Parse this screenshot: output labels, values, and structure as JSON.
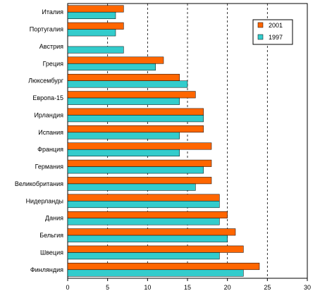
{
  "chart_data": {
    "type": "bar",
    "orientation": "horizontal",
    "categories": [
      "Италия",
      "Португалия",
      "Австрия",
      "Греция",
      "Люксембург",
      "Европа-15",
      "Ирландия",
      "Испания",
      "Франция",
      "Германия",
      "Великобритания",
      "Нидерланды",
      "Дания",
      "Бельгия",
      "Швеция",
      "Финляндия"
    ],
    "series": [
      {
        "name": "2001",
        "color": "#ff6600",
        "values": [
          7,
          7,
          null,
          12,
          14,
          16,
          17,
          17,
          18,
          18,
          18,
          19,
          20,
          21,
          22,
          24
        ]
      },
      {
        "name": "1997",
        "color": "#33cccc",
        "values": [
          6,
          6,
          7,
          11,
          15,
          14,
          17,
          14,
          14,
          17,
          16,
          19,
          19,
          20,
          19,
          22
        ]
      }
    ],
    "xlim": [
      0,
      30
    ],
    "xticks": [
      0,
      5,
      10,
      15,
      20,
      25,
      30
    ],
    "grid": "vertical dashed",
    "legend_position": "top-right"
  }
}
